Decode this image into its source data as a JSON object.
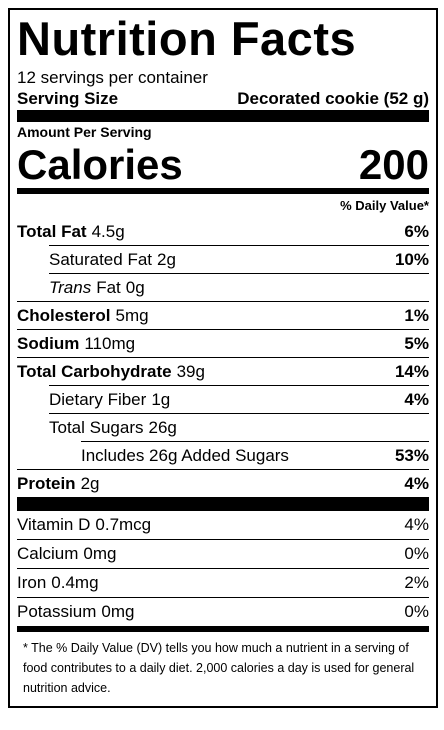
{
  "title": "Nutrition Facts",
  "servings": "12 servings per container",
  "serving_size": {
    "label": "Serving Size",
    "value": "Decorated cookie (52 g)"
  },
  "amount_per_serving": "Amount Per Serving",
  "calories": {
    "label": "Calories",
    "value": "200"
  },
  "dv_header": "% Daily Value*",
  "nutrients": [
    {
      "name": "Total Fat",
      "amount": "4.5g",
      "dv": "6%",
      "level": 0
    },
    {
      "name": "Saturated Fat",
      "amount": "2g",
      "dv": "10%",
      "level": 1
    },
    {
      "prefix": "Trans",
      "name": "Fat",
      "amount": "0g",
      "level": 1
    },
    {
      "name": "Cholesterol",
      "amount": "5mg",
      "dv": "1%",
      "level": 0
    },
    {
      "name": "Sodium",
      "amount": "110mg",
      "dv": "5%",
      "level": 0
    },
    {
      "name": "Total Carbohydrate",
      "amount": "39g",
      "dv": "14%",
      "level": 0
    },
    {
      "name": "Dietary Fiber",
      "amount": "1g",
      "dv": "4%",
      "level": 1
    },
    {
      "name": "Total Sugars",
      "amount": "26g",
      "level": 1
    },
    {
      "name": "Includes 26g Added Sugars",
      "dv": "53%",
      "level": 2
    },
    {
      "name": "Protein",
      "amount": "2g",
      "dv": "4%",
      "level": 0
    }
  ],
  "vitamins": [
    {
      "name": "Vitamin D",
      "amount": "0.7mcg",
      "dv": "4%"
    },
    {
      "name": "Calcium",
      "amount": "0mg",
      "dv": "0%"
    },
    {
      "name": "Iron",
      "amount": "0.4mg",
      "dv": "2%"
    },
    {
      "name": "Potassium",
      "amount": "0mg",
      "dv": "0%"
    }
  ],
  "footnote": "* The % Daily Value (DV) tells you how much a nutrient in a serving of food contributes to a daily diet. 2,000 calories a day is used for general nutrition advice."
}
